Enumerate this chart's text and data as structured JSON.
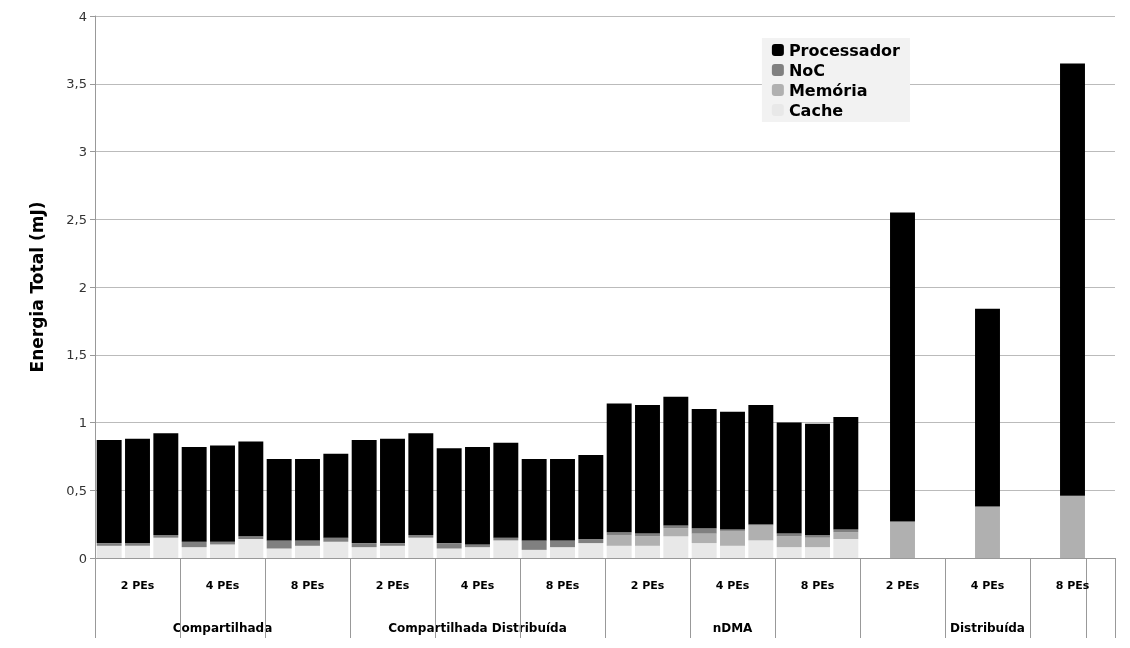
{
  "chart_data": {
    "type": "bar",
    "stacked": true,
    "ylabel": "Energia Total (mJ)",
    "categories": [
      null,
      "2 PEs",
      null,
      null,
      "4 PEs",
      null,
      null,
      "8 PEs",
      null,
      null,
      "2 PEs",
      null,
      null,
      "4 PEs",
      null,
      null,
      "8 PEs",
      null,
      null,
      "2 PEs",
      null,
      null,
      "4 PEs",
      null,
      null,
      "8 PEs",
      null,
      null,
      "2 PEs",
      null,
      null,
      "4 PEs",
      null,
      null,
      "8 PEs",
      null
    ],
    "annotations": [
      "Compartilhada",
      "Compartilhada Distribuída",
      "nDMA",
      "Distribuída"
    ],
    "series": [
      {
        "name": "Cache",
        "color": "#e8e8e8",
        "values": [
          0.09,
          0.09,
          0.15,
          0.08,
          0.1,
          0.14,
          0.07,
          0.09,
          0.12,
          0.08,
          0.09,
          0.15,
          0.07,
          0.08,
          0.13,
          0.06,
          0.08,
          0.11,
          0.09,
          0.09,
          0.16,
          0.11,
          0.09,
          0.13,
          0.08,
          0.08,
          0.14,
          null,
          null,
          null,
          null,
          null,
          null,
          null,
          null,
          null
        ]
      },
      {
        "name": "Memória",
        "color": "#b0b0b0",
        "values": [
          0,
          0,
          0,
          0,
          0,
          0,
          0,
          0,
          0,
          0,
          0,
          0,
          0,
          0,
          0,
          0,
          0,
          0,
          0.08,
          0.07,
          0.06,
          0.07,
          0.11,
          0.11,
          0.08,
          0.07,
          0.05,
          null,
          0.27,
          null,
          null,
          0.38,
          null,
          null,
          0.46,
          null
        ]
      },
      {
        "name": "NoC",
        "color": "#808080",
        "values": [
          0.02,
          0.02,
          0.02,
          0.04,
          0.02,
          0.02,
          0.06,
          0.04,
          0.03,
          0.03,
          0.02,
          0.02,
          0.04,
          0.02,
          0.02,
          0.07,
          0.05,
          0.03,
          0.02,
          0.02,
          0.02,
          0.04,
          0.01,
          0.01,
          0.02,
          0.02,
          0.02,
          null,
          null,
          null,
          null,
          null,
          null,
          null,
          null,
          null
        ]
      },
      {
        "name": "Processador",
        "color": "#000000",
        "values": [
          0.76,
          0.77,
          0.75,
          0.7,
          0.71,
          0.7,
          0.6,
          0.6,
          0.62,
          0.76,
          0.77,
          0.75,
          0.7,
          0.72,
          0.7,
          0.6,
          0.6,
          0.62,
          0.95,
          0.95,
          0.95,
          0.88,
          0.87,
          0.88,
          0.82,
          0.82,
          0.83,
          null,
          2.28,
          null,
          null,
          1.46,
          null,
          null,
          3.19,
          null
        ]
      }
    ],
    "ylim": [
      0,
      4
    ],
    "yticks": [
      0,
      {
        "value": 0.5,
        "label": "0,5"
      },
      1,
      {
        "value": 1.5,
        "label": "1,5"
      },
      2,
      {
        "value": 2.5,
        "label": "2,5"
      },
      3,
      {
        "value": 3.5,
        "label": "3,5"
      },
      4
    ],
    "grid": true,
    "legend": "top right"
  }
}
